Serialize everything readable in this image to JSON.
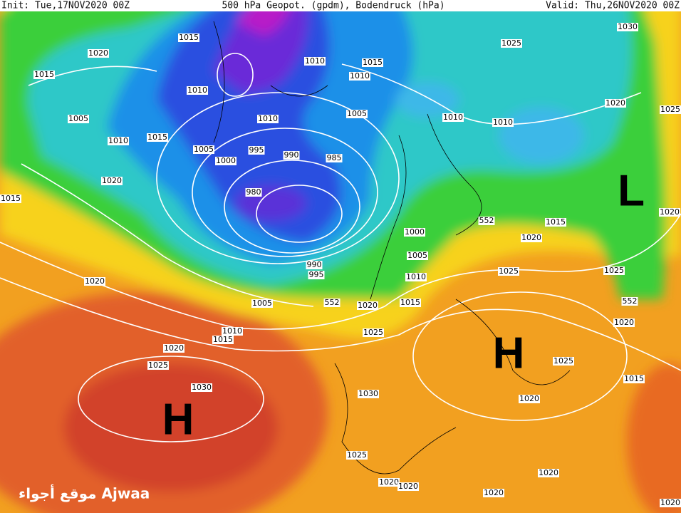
{
  "header": {
    "init": "Init: Tue,17NOV2020 00Z",
    "title": "500 hPa Geopot. (gpdm), Bodendruck (hPa)",
    "valid": "Valid: Thu,26NOV2020 00Z"
  },
  "isobar_labels": [
    1015,
    1020,
    1015,
    1010,
    1005,
    1010,
    1015,
    1005,
    1000,
    995,
    990,
    985,
    980,
    1020,
    1015,
    1010,
    1015,
    1010,
    1010,
    1005,
    1010,
    1010,
    1025,
    1030,
    1020,
    1025,
    1020,
    1015,
    1020,
    552,
    1000,
    1005,
    1010,
    990,
    995,
    1025,
    1025,
    552,
    1020,
    1020,
    1005,
    552,
    1020,
    1015,
    1025,
    1010,
    1015,
    1020,
    1025,
    1030,
    1030,
    1025,
    1015,
    1020,
    1025,
    1020,
    1020,
    1020,
    1020,
    1020
  ],
  "pressure_centers": [
    "H",
    "H",
    "L"
  ],
  "watermark": "موقع أجواء Ajwaa"
}
